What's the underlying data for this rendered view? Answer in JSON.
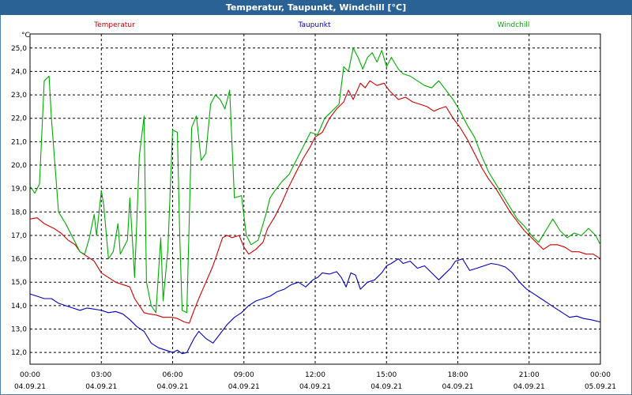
{
  "window": {
    "title": "Temperatur, Taupunkt, Windchill [°C]"
  },
  "chart_data": {
    "type": "line",
    "title": "Temperatur, Taupunkt, Windchill [°C]",
    "ylabel": "°C",
    "ylim": [
      11.5,
      25.6
    ],
    "yticks": [
      12.0,
      13.0,
      14.0,
      15.0,
      16.0,
      17.0,
      18.0,
      19.0,
      20.0,
      21.0,
      22.0,
      23.0,
      24.0,
      25.0
    ],
    "ytick_labels": [
      "12,0",
      "13,0",
      "14,0",
      "15,0",
      "16,0",
      "17,0",
      "18,0",
      "19,0",
      "20,0",
      "21,0",
      "22,0",
      "23,0",
      "24,0",
      "25,0"
    ],
    "xlim": [
      0,
      24
    ],
    "xticks": [
      {
        "h": 0,
        "time": "00:00",
        "date": "04.09.21"
      },
      {
        "h": 3,
        "time": "03:00",
        "date": "04.09.21"
      },
      {
        "h": 6,
        "time": "06:00",
        "date": "04.09.21"
      },
      {
        "h": 9,
        "time": "09:00",
        "date": "04.09.21"
      },
      {
        "h": 12,
        "time": "12:00",
        "date": "04.09.21"
      },
      {
        "h": 15,
        "time": "15:00",
        "date": "04.09.21"
      },
      {
        "h": 18,
        "time": "18:00",
        "date": "04.09.21"
      },
      {
        "h": 21,
        "time": "21:00",
        "date": "04.09.21"
      },
      {
        "h": 24,
        "time": "00:00",
        "date": "05.09.21"
      }
    ],
    "grid": true,
    "legend_position": "top",
    "series": [
      {
        "name": "Temperatur",
        "color": "#cc0000",
        "points": [
          [
            0,
            17.7
          ],
          [
            0.3,
            17.75
          ],
          [
            0.6,
            17.5
          ],
          [
            1,
            17.3
          ],
          [
            1.3,
            17.1
          ],
          [
            1.6,
            16.8
          ],
          [
            1.9,
            16.6
          ],
          [
            2.1,
            16.3
          ],
          [
            2.4,
            16.1
          ],
          [
            2.7,
            15.9
          ],
          [
            3,
            15.4
          ],
          [
            3.3,
            15.2
          ],
          [
            3.6,
            15.0
          ],
          [
            3.9,
            14.9
          ],
          [
            4.2,
            14.8
          ],
          [
            4.4,
            14.3
          ],
          [
            4.6,
            14.0
          ],
          [
            4.8,
            13.7
          ],
          [
            5,
            13.65
          ],
          [
            5.3,
            13.6
          ],
          [
            5.6,
            13.5
          ],
          [
            6,
            13.5
          ],
          [
            6.2,
            13.45
          ],
          [
            6.5,
            13.3
          ],
          [
            6.7,
            13.25
          ],
          [
            6.9,
            13.8
          ],
          [
            7.1,
            14.3
          ],
          [
            7.4,
            15.0
          ],
          [
            7.7,
            15.7
          ],
          [
            7.9,
            16.3
          ],
          [
            8.1,
            16.9
          ],
          [
            8.3,
            17.0
          ],
          [
            8.5,
            16.9
          ],
          [
            8.8,
            17.0
          ],
          [
            9,
            16.5
          ],
          [
            9.2,
            16.2
          ],
          [
            9.5,
            16.4
          ],
          [
            9.8,
            16.7
          ],
          [
            10,
            17.3
          ],
          [
            10.3,
            17.8
          ],
          [
            10.6,
            18.4
          ],
          [
            10.9,
            19.1
          ],
          [
            11.2,
            19.7
          ],
          [
            11.5,
            20.3
          ],
          [
            11.8,
            20.8
          ],
          [
            12,
            21.2
          ],
          [
            12.3,
            21.4
          ],
          [
            12.6,
            22.0
          ],
          [
            12.9,
            22.4
          ],
          [
            13.2,
            22.7
          ],
          [
            13.4,
            23.2
          ],
          [
            13.6,
            22.8
          ],
          [
            13.9,
            23.5
          ],
          [
            14.1,
            23.3
          ],
          [
            14.3,
            23.6
          ],
          [
            14.6,
            23.4
          ],
          [
            14.9,
            23.5
          ],
          [
            15.1,
            23.2
          ],
          [
            15.3,
            23.0
          ],
          [
            15.5,
            22.8
          ],
          [
            15.8,
            22.9
          ],
          [
            16.1,
            22.7
          ],
          [
            16.4,
            22.6
          ],
          [
            16.7,
            22.5
          ],
          [
            17,
            22.3
          ],
          [
            17.2,
            22.4
          ],
          [
            17.5,
            22.5
          ],
          [
            17.8,
            22.0
          ],
          [
            18.1,
            21.6
          ],
          [
            18.4,
            21.1
          ],
          [
            18.7,
            20.5
          ],
          [
            19,
            19.9
          ],
          [
            19.3,
            19.4
          ],
          [
            19.6,
            19.0
          ],
          [
            19.9,
            18.5
          ],
          [
            20.2,
            18.0
          ],
          [
            20.5,
            17.6
          ],
          [
            20.8,
            17.2
          ],
          [
            21.1,
            16.9
          ],
          [
            21.4,
            16.6
          ],
          [
            21.6,
            16.4
          ],
          [
            21.9,
            16.6
          ],
          [
            22.2,
            16.6
          ],
          [
            22.5,
            16.5
          ],
          [
            22.8,
            16.3
          ],
          [
            23.1,
            16.3
          ],
          [
            23.4,
            16.2
          ],
          [
            23.7,
            16.2
          ],
          [
            24,
            16.0
          ]
        ]
      },
      {
        "name": "Taupunkt",
        "color": "#0000bb",
        "points": [
          [
            0,
            14.5
          ],
          [
            0.3,
            14.4
          ],
          [
            0.6,
            14.3
          ],
          [
            0.9,
            14.3
          ],
          [
            1.2,
            14.1
          ],
          [
            1.5,
            14.0
          ],
          [
            1.8,
            13.9
          ],
          [
            2.1,
            13.8
          ],
          [
            2.4,
            13.9
          ],
          [
            2.7,
            13.85
          ],
          [
            3,
            13.8
          ],
          [
            3.3,
            13.7
          ],
          [
            3.6,
            13.75
          ],
          [
            3.9,
            13.65
          ],
          [
            4.2,
            13.4
          ],
          [
            4.5,
            13.1
          ],
          [
            4.8,
            12.9
          ],
          [
            5.1,
            12.4
          ],
          [
            5.4,
            12.2
          ],
          [
            5.7,
            12.1
          ],
          [
            6,
            12.0
          ],
          [
            6.2,
            12.1
          ],
          [
            6.4,
            11.95
          ],
          [
            6.6,
            12.0
          ],
          [
            6.9,
            12.6
          ],
          [
            7.1,
            12.9
          ],
          [
            7.4,
            12.6
          ],
          [
            7.7,
            12.4
          ],
          [
            8,
            12.8
          ],
          [
            8.3,
            13.2
          ],
          [
            8.6,
            13.5
          ],
          [
            8.9,
            13.7
          ],
          [
            9.2,
            14.0
          ],
          [
            9.5,
            14.2
          ],
          [
            9.8,
            14.3
          ],
          [
            10.1,
            14.4
          ],
          [
            10.4,
            14.6
          ],
          [
            10.7,
            14.7
          ],
          [
            11,
            14.9
          ],
          [
            11.3,
            15.0
          ],
          [
            11.6,
            14.8
          ],
          [
            11.9,
            15.1
          ],
          [
            12.1,
            15.2
          ],
          [
            12.3,
            15.4
          ],
          [
            12.6,
            15.35
          ],
          [
            12.9,
            15.45
          ],
          [
            13.1,
            15.2
          ],
          [
            13.3,
            14.8
          ],
          [
            13.5,
            15.4
          ],
          [
            13.7,
            15.3
          ],
          [
            13.9,
            14.7
          ],
          [
            14.2,
            15.0
          ],
          [
            14.5,
            15.1
          ],
          [
            14.8,
            15.4
          ],
          [
            15,
            15.7
          ],
          [
            15.2,
            15.8
          ],
          [
            15.5,
            16.0
          ],
          [
            15.7,
            15.8
          ],
          [
            16,
            15.9
          ],
          [
            16.3,
            15.6
          ],
          [
            16.6,
            15.7
          ],
          [
            16.9,
            15.4
          ],
          [
            17.2,
            15.1
          ],
          [
            17.4,
            15.3
          ],
          [
            17.7,
            15.6
          ],
          [
            17.9,
            15.9
          ],
          [
            18.2,
            16.0
          ],
          [
            18.5,
            15.5
          ],
          [
            18.8,
            15.6
          ],
          [
            19.1,
            15.7
          ],
          [
            19.4,
            15.8
          ],
          [
            19.7,
            15.75
          ],
          [
            20,
            15.65
          ],
          [
            20.3,
            15.4
          ],
          [
            20.6,
            15.0
          ],
          [
            20.9,
            14.7
          ],
          [
            21.2,
            14.5
          ],
          [
            21.5,
            14.3
          ],
          [
            21.8,
            14.1
          ],
          [
            22.1,
            13.9
          ],
          [
            22.4,
            13.7
          ],
          [
            22.7,
            13.5
          ],
          [
            23,
            13.55
          ],
          [
            23.3,
            13.45
          ],
          [
            23.6,
            13.4
          ],
          [
            24,
            13.3
          ]
        ]
      },
      {
        "name": "Windchill",
        "color": "#00aa00",
        "points": [
          [
            0,
            19.1
          ],
          [
            0.2,
            18.8
          ],
          [
            0.4,
            19.2
          ],
          [
            0.6,
            23.6
          ],
          [
            0.8,
            23.8
          ],
          [
            0.9,
            22.0
          ],
          [
            1.2,
            18.0
          ],
          [
            1.5,
            17.5
          ],
          [
            1.8,
            16.9
          ],
          [
            2.1,
            16.3
          ],
          [
            2.3,
            16.2
          ],
          [
            2.5,
            16.9
          ],
          [
            2.7,
            17.9
          ],
          [
            2.8,
            17.0
          ],
          [
            3,
            18.9
          ],
          [
            3.1,
            18.3
          ],
          [
            3.3,
            16.0
          ],
          [
            3.5,
            16.3
          ],
          [
            3.7,
            17.5
          ],
          [
            3.8,
            16.2
          ],
          [
            4.1,
            16.8
          ],
          [
            4.2,
            18.6
          ],
          [
            4.4,
            15.2
          ],
          [
            4.6,
            20.4
          ],
          [
            4.8,
            22.1
          ],
          [
            4.9,
            15.0
          ],
          [
            5.1,
            14.0
          ],
          [
            5.3,
            13.7
          ],
          [
            5.5,
            16.9
          ],
          [
            5.6,
            14.2
          ],
          [
            5.8,
            16.4
          ],
          [
            6,
            21.5
          ],
          [
            6.2,
            21.4
          ],
          [
            6.3,
            17.0
          ],
          [
            6.4,
            13.8
          ],
          [
            6.6,
            13.7
          ],
          [
            6.8,
            21.6
          ],
          [
            7,
            22.1
          ],
          [
            7.2,
            20.2
          ],
          [
            7.4,
            20.5
          ],
          [
            7.6,
            22.6
          ],
          [
            7.8,
            23.0
          ],
          [
            8,
            22.8
          ],
          [
            8.2,
            22.4
          ],
          [
            8.4,
            23.2
          ],
          [
            8.6,
            18.6
          ],
          [
            8.9,
            18.7
          ],
          [
            9.1,
            17.0
          ],
          [
            9.3,
            16.6
          ],
          [
            9.6,
            16.8
          ],
          [
            9.9,
            17.8
          ],
          [
            10.1,
            18.6
          ],
          [
            10.3,
            18.9
          ],
          [
            10.6,
            19.3
          ],
          [
            10.9,
            19.6
          ],
          [
            11.2,
            20.2
          ],
          [
            11.5,
            20.8
          ],
          [
            11.8,
            21.4
          ],
          [
            12.1,
            21.3
          ],
          [
            12.4,
            22.0
          ],
          [
            12.7,
            22.3
          ],
          [
            13,
            22.6
          ],
          [
            13.2,
            24.2
          ],
          [
            13.4,
            24.0
          ],
          [
            13.6,
            25.0
          ],
          [
            13.8,
            24.6
          ],
          [
            14,
            24.1
          ],
          [
            14.2,
            24.6
          ],
          [
            14.4,
            24.8
          ],
          [
            14.6,
            24.4
          ],
          [
            14.8,
            24.9
          ],
          [
            15,
            24.2
          ],
          [
            15.2,
            24.6
          ],
          [
            15.5,
            24.1
          ],
          [
            15.7,
            23.9
          ],
          [
            16,
            23.8
          ],
          [
            16.3,
            23.6
          ],
          [
            16.6,
            23.4
          ],
          [
            16.9,
            23.3
          ],
          [
            17.2,
            23.6
          ],
          [
            17.5,
            23.2
          ],
          [
            17.8,
            22.8
          ],
          [
            18.1,
            22.3
          ],
          [
            18.4,
            21.7
          ],
          [
            18.7,
            21.2
          ],
          [
            19,
            20.4
          ],
          [
            19.3,
            19.7
          ],
          [
            19.6,
            19.2
          ],
          [
            19.9,
            18.7
          ],
          [
            20.2,
            18.2
          ],
          [
            20.5,
            17.7
          ],
          [
            20.8,
            17.4
          ],
          [
            21.1,
            17.0
          ],
          [
            21.4,
            16.7
          ],
          [
            21.7,
            17.2
          ],
          [
            22,
            17.7
          ],
          [
            22.3,
            17.2
          ],
          [
            22.6,
            16.9
          ],
          [
            22.9,
            17.1
          ],
          [
            23.2,
            17.0
          ],
          [
            23.5,
            17.3
          ],
          [
            23.8,
            17.0
          ],
          [
            24,
            16.6
          ]
        ]
      }
    ]
  }
}
